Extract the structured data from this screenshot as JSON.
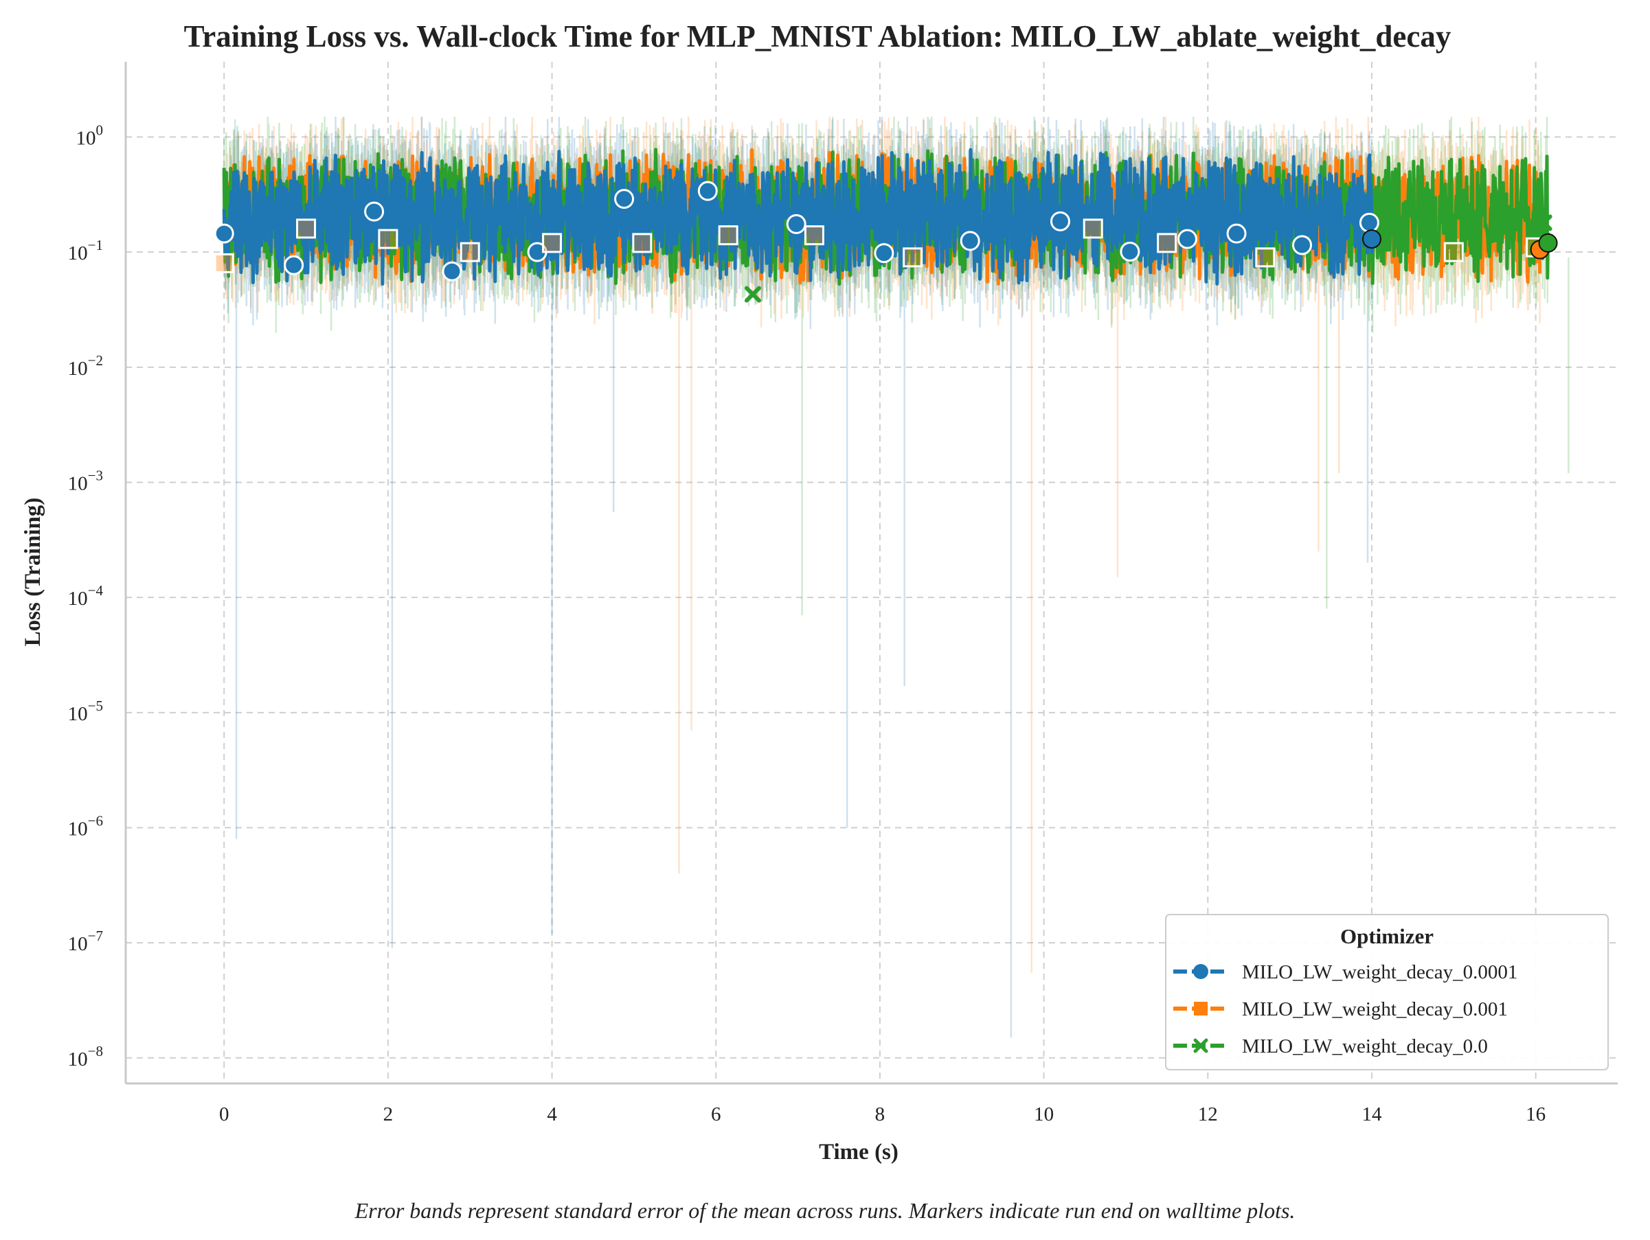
{
  "chart_data": {
    "type": "line",
    "title": "Training Loss vs. Wall-clock Time for MLP_MNIST Ablation: MILO_LW_ablate_weight_decay",
    "xlabel": "Time (s)",
    "ylabel": "Loss (Training)",
    "yscale": "log",
    "xlim": [
      -1.2,
      17.0
    ],
    "ylim": [
      6e-09,
      4.5
    ],
    "x_ticks": [
      0,
      2,
      4,
      6,
      8,
      10,
      12,
      14,
      16
    ],
    "y_ticks": [
      {
        "value": 1e-08,
        "base": "10",
        "exp": "−8"
      },
      {
        "value": 1e-07,
        "base": "10",
        "exp": "−7"
      },
      {
        "value": 1e-06,
        "base": "10",
        "exp": "−6"
      },
      {
        "value": 1e-05,
        "base": "10",
        "exp": "−5"
      },
      {
        "value": 0.0001,
        "base": "10",
        "exp": "−4"
      },
      {
        "value": 0.001,
        "base": "10",
        "exp": "−3"
      },
      {
        "value": 0.01,
        "base": "10",
        "exp": "−2"
      },
      {
        "value": 0.1,
        "base": "10",
        "exp": "−1"
      },
      {
        "value": 1,
        "base": "10",
        "exp": "0"
      }
    ],
    "grid": true,
    "legend": {
      "title": "Optimizer",
      "position": "lower-right"
    },
    "caption": "Error bands represent standard error of the mean across runs. Markers indicate run end on walltime plots.",
    "series": [
      {
        "name": "MILO_LW_weight_decay_0.0001",
        "color": "#1f77b4",
        "marker": "circle",
        "x_end": 14.0,
        "end_value": 0.13,
        "typical_range": [
          0.04,
          0.6
        ],
        "markers": [
          [
            0.0,
            0.145
          ],
          [
            0.85,
            0.077
          ],
          [
            1.83,
            0.225
          ],
          [
            2.78,
            0.068
          ],
          [
            3.82,
            0.1
          ],
          [
            4.88,
            0.29
          ],
          [
            5.9,
            0.34
          ],
          [
            6.98,
            0.175
          ],
          [
            8.05,
            0.098
          ],
          [
            9.1,
            0.125
          ],
          [
            10.2,
            0.185
          ],
          [
            11.05,
            0.101
          ],
          [
            11.75,
            0.13
          ],
          [
            12.35,
            0.145
          ],
          [
            13.15,
            0.115
          ],
          [
            13.97,
            0.18
          ]
        ],
        "dips": [
          [
            0.15,
            8e-07
          ],
          [
            2.05,
            9e-08
          ],
          [
            4.0,
            1.2e-07
          ],
          [
            4.75,
            0.00055
          ],
          [
            7.6,
            1e-06
          ],
          [
            8.3,
            1.7e-05
          ],
          [
            9.6,
            1.5e-08
          ],
          [
            13.95,
            0.0002
          ]
        ]
      },
      {
        "name": "MILO_LW_weight_decay_0.001",
        "color": "#ff7f0e",
        "marker": "square",
        "x_end": 16.05,
        "end_value": 0.105,
        "typical_range": [
          0.04,
          0.6
        ],
        "markers": [
          [
            0.0,
            0.08
          ],
          [
            1.0,
            0.16
          ],
          [
            2.0,
            0.13
          ],
          [
            3.0,
            0.1
          ],
          [
            4.0,
            0.12
          ],
          [
            5.1,
            0.12
          ],
          [
            6.15,
            0.14
          ],
          [
            7.2,
            0.14
          ],
          [
            8.4,
            0.09
          ],
          [
            10.6,
            0.16
          ],
          [
            11.5,
            0.12
          ],
          [
            12.7,
            0.09
          ],
          [
            15.0,
            0.1
          ],
          [
            16.0,
            0.11
          ]
        ],
        "dips": [
          [
            5.55,
            4e-07
          ],
          [
            5.7,
            7e-06
          ],
          [
            9.85,
            5.5e-08
          ],
          [
            10.9,
            0.00015
          ],
          [
            13.35,
            0.00025
          ],
          [
            13.6,
            0.0012
          ]
        ]
      },
      {
        "name": "MILO_LW_weight_decay_0.0",
        "color": "#2ca02c",
        "marker": "x",
        "x_end": 16.15,
        "end_value": 0.12,
        "typical_range": [
          0.04,
          0.6
        ],
        "markers": [
          [
            6.45,
            0.043
          ],
          [
            16.1,
            0.18
          ]
        ],
        "dips": [
          [
            7.05,
            7e-05
          ],
          [
            13.45,
            8e-05
          ],
          [
            16.4,
            0.0012
          ]
        ]
      }
    ]
  }
}
